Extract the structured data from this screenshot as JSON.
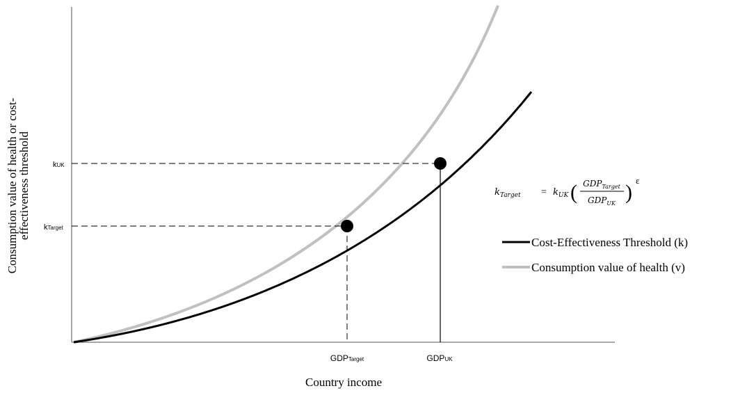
{
  "figure": {
    "y_axis_label_line1": "Consumption value of health or cost-",
    "y_axis_label_line2": "effectiveness threshold",
    "x_axis_label": "Country income",
    "tick_gdp_target_main": "GDP",
    "tick_gdp_target_sub": "Target",
    "tick_gdp_uk_main": "GDP",
    "tick_gdp_uk_sub": "UK",
    "tick_k_uk_main": "k",
    "tick_k_uk_sub": "UK",
    "tick_k_target_main": "k",
    "tick_k_target_sub": "Target",
    "formula": {
      "k": "k",
      "sub_target": "Target",
      "equals": "=",
      "sub_uk": "UK",
      "gdp": "GDP",
      "open_paren": "(",
      "close_paren": ")",
      "exponent": "ε"
    }
  },
  "legend": {
    "items": [
      {
        "label": "Cost-Effectiveness Threshold (k)",
        "color": "#000000"
      },
      {
        "label": "Consumption value of health (v)",
        "color": "#c0c0c0"
      }
    ]
  },
  "colors": {
    "threshold_curve": "#000000",
    "value_curve": "#c0c0c0",
    "axis": "#8c8c8c",
    "guides": "#000000"
  }
}
